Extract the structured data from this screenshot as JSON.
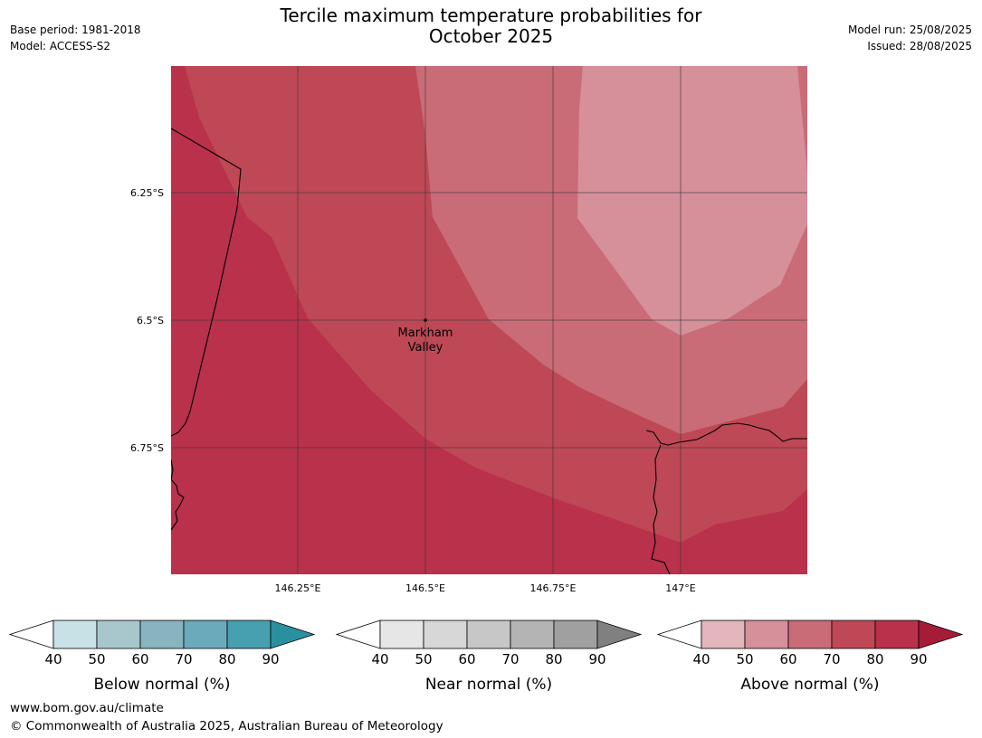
{
  "title": {
    "line1": "Tercile maximum temperature probabilities for",
    "line2": "October 2025"
  },
  "meta_left": {
    "base_period": "Base period: 1981-2018",
    "model": "Model: ACCESS-S2"
  },
  "meta_right": {
    "model_run": "Model run: 25/08/2025",
    "issued": "Issued: 28/08/2025"
  },
  "map": {
    "lat_labels": [
      "6.25°S",
      "6.5°S",
      "6.75°S"
    ],
    "lon_labels": [
      "146.25°E",
      "146.5°E",
      "146.75°E",
      "147°E"
    ],
    "place": {
      "name_line1": "Markham",
      "name_line2": "Valley"
    },
    "contour_levels_above_normal_pct": [
      60,
      70,
      80
    ]
  },
  "colorbars": [
    {
      "name": "below-normal",
      "label": "Below normal (%)",
      "ticks": [
        "40",
        "50",
        "60",
        "70",
        "80",
        "90"
      ],
      "colors": [
        "#ffffff",
        "#c8e1e6",
        "#a7c7cc",
        "#88b4c0",
        "#6aaabb",
        "#46a0b0",
        "#2a90a0"
      ]
    },
    {
      "name": "near-normal",
      "label": "Near normal (%)",
      "ticks": [
        "40",
        "50",
        "60",
        "70",
        "80",
        "90"
      ],
      "colors": [
        "#ffffff",
        "#e6e6e6",
        "#d7d7d7",
        "#c7c7c7",
        "#b4b4b4",
        "#a0a0a0",
        "#808080"
      ]
    },
    {
      "name": "above-normal",
      "label": "Above normal (%)",
      "ticks": [
        "40",
        "50",
        "60",
        "70",
        "80",
        "90"
      ],
      "colors": [
        "#ffffff",
        "#e2b6bb",
        "#d5909a",
        "#c96c77",
        "#be4855",
        "#b9314b",
        "#a51b38"
      ]
    }
  ],
  "footer": {
    "url": "www.bom.gov.au/climate",
    "copyright": "© Commonwealth of Australia 2025, Australian Bureau of Meteorology"
  }
}
